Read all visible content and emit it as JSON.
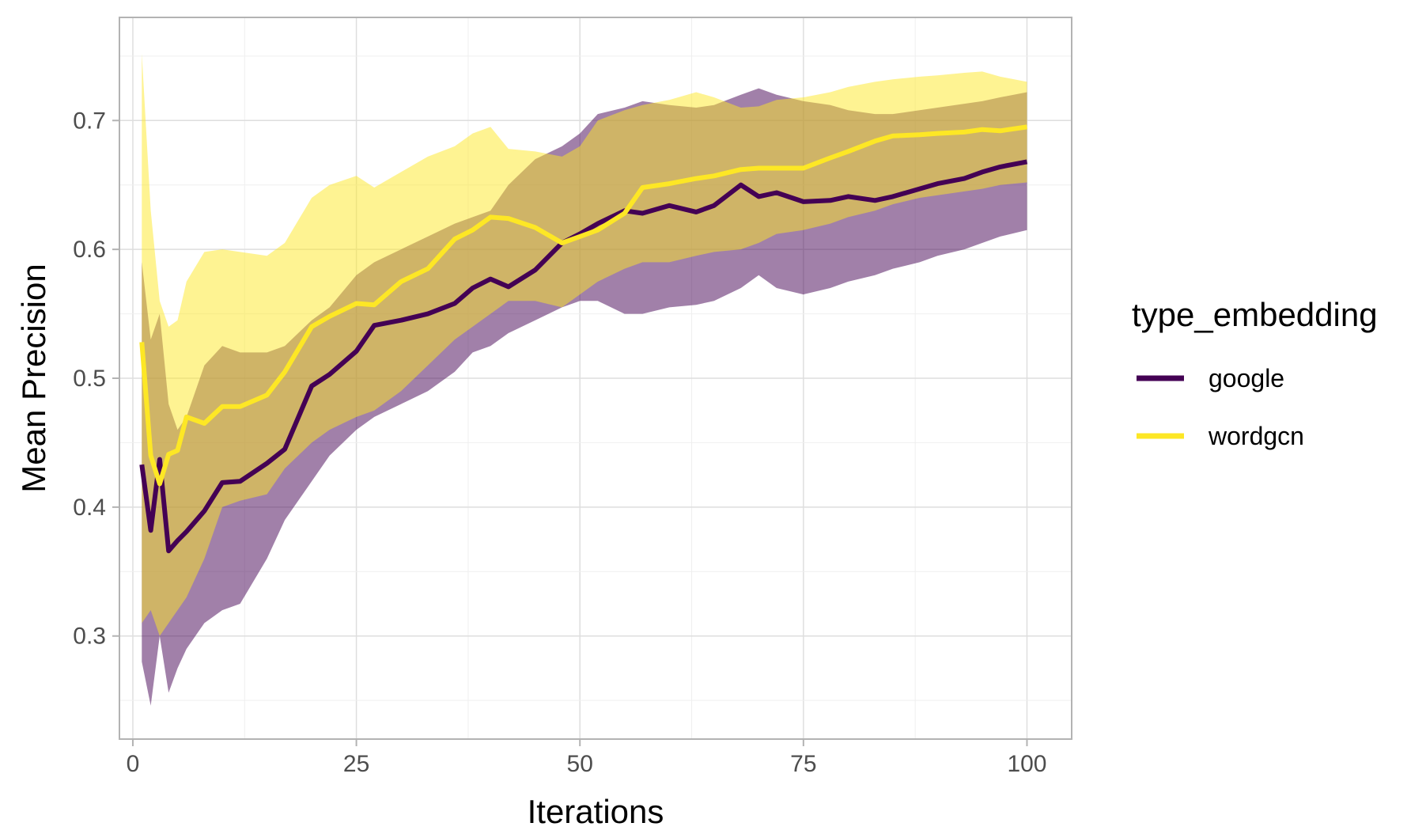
{
  "chart_data": {
    "type": "line",
    "title": "",
    "xlabel": "Iterations",
    "ylabel": "Mean Precision",
    "xlim": [
      -1.5,
      105
    ],
    "ylim": [
      0.22,
      0.78
    ],
    "x_ticks": [
      0,
      25,
      50,
      75,
      100
    ],
    "x_tick_labels": [
      "0",
      "25",
      "50",
      "75",
      "100"
    ],
    "y_ticks": [
      0.3,
      0.4,
      0.5,
      0.6,
      0.7
    ],
    "y_tick_labels": [
      "0.3",
      "0.4",
      "0.5",
      "0.6",
      "0.7"
    ],
    "grid": true,
    "legend": {
      "title": "type_embedding",
      "position": "right"
    },
    "x": [
      1,
      2,
      3,
      4,
      5,
      6,
      8,
      10,
      12,
      15,
      17,
      20,
      22,
      25,
      27,
      30,
      33,
      36,
      38,
      40,
      42,
      45,
      48,
      50,
      52,
      55,
      57,
      60,
      63,
      65,
      68,
      70,
      72,
      75,
      78,
      80,
      83,
      85,
      88,
      90,
      93,
      95,
      97,
      100
    ],
    "series": [
      {
        "name": "google",
        "color": "#440154",
        "values": [
          0.433,
          0.382,
          0.437,
          0.366,
          0.374,
          0.381,
          0.397,
          0.419,
          0.42,
          0.434,
          0.445,
          0.494,
          0.503,
          0.521,
          0.541,
          0.545,
          0.55,
          0.558,
          0.57,
          0.577,
          0.571,
          0.584,
          0.605,
          0.612,
          0.62,
          0.63,
          0.628,
          0.634,
          0.629,
          0.634,
          0.65,
          0.641,
          0.644,
          0.637,
          0.638,
          0.641,
          0.638,
          0.641,
          0.647,
          0.651,
          0.655,
          0.66,
          0.664,
          0.668
        ],
        "band_lower": [
          0.28,
          0.246,
          0.3,
          0.256,
          0.275,
          0.29,
          0.31,
          0.32,
          0.325,
          0.36,
          0.39,
          0.42,
          0.44,
          0.46,
          0.47,
          0.48,
          0.49,
          0.505,
          0.52,
          0.525,
          0.535,
          0.545,
          0.555,
          0.56,
          0.56,
          0.55,
          0.55,
          0.555,
          0.557,
          0.56,
          0.57,
          0.58,
          0.57,
          0.565,
          0.57,
          0.575,
          0.58,
          0.585,
          0.59,
          0.595,
          0.6,
          0.605,
          0.61,
          0.615
        ],
        "band_upper": [
          0.59,
          0.53,
          0.55,
          0.48,
          0.46,
          0.47,
          0.51,
          0.525,
          0.52,
          0.52,
          0.525,
          0.545,
          0.555,
          0.58,
          0.59,
          0.6,
          0.61,
          0.62,
          0.625,
          0.63,
          0.65,
          0.67,
          0.68,
          0.69,
          0.705,
          0.71,
          0.715,
          0.712,
          0.71,
          0.712,
          0.72,
          0.725,
          0.72,
          0.715,
          0.712,
          0.708,
          0.705,
          0.705,
          0.708,
          0.71,
          0.713,
          0.715,
          0.718,
          0.722
        ]
      },
      {
        "name": "wordgcn",
        "color": "#fde725",
        "values": [
          0.528,
          0.44,
          0.418,
          0.441,
          0.444,
          0.47,
          0.465,
          0.478,
          0.478,
          0.487,
          0.505,
          0.54,
          0.548,
          0.558,
          0.557,
          0.575,
          0.585,
          0.608,
          0.615,
          0.625,
          0.624,
          0.617,
          0.605,
          0.61,
          0.615,
          0.628,
          0.648,
          0.651,
          0.655,
          0.657,
          0.662,
          0.663,
          0.663,
          0.663,
          0.671,
          0.676,
          0.684,
          0.688,
          0.689,
          0.69,
          0.691,
          0.693,
          0.692,
          0.695
        ],
        "band_lower": [
          0.31,
          0.32,
          0.3,
          0.31,
          0.32,
          0.33,
          0.36,
          0.4,
          0.405,
          0.41,
          0.43,
          0.45,
          0.46,
          0.47,
          0.475,
          0.49,
          0.51,
          0.53,
          0.54,
          0.55,
          0.56,
          0.56,
          0.555,
          0.565,
          0.575,
          0.585,
          0.59,
          0.59,
          0.595,
          0.598,
          0.6,
          0.605,
          0.612,
          0.615,
          0.62,
          0.625,
          0.63,
          0.635,
          0.64,
          0.642,
          0.645,
          0.647,
          0.65,
          0.652
        ],
        "band_upper": [
          0.752,
          0.63,
          0.56,
          0.54,
          0.545,
          0.575,
          0.598,
          0.6,
          0.598,
          0.595,
          0.605,
          0.64,
          0.65,
          0.657,
          0.648,
          0.66,
          0.672,
          0.68,
          0.69,
          0.695,
          0.678,
          0.676,
          0.672,
          0.68,
          0.7,
          0.708,
          0.712,
          0.716,
          0.722,
          0.718,
          0.71,
          0.711,
          0.716,
          0.718,
          0.722,
          0.726,
          0.73,
          0.732,
          0.734,
          0.735,
          0.737,
          0.738,
          0.734,
          0.73
        ]
      }
    ]
  }
}
